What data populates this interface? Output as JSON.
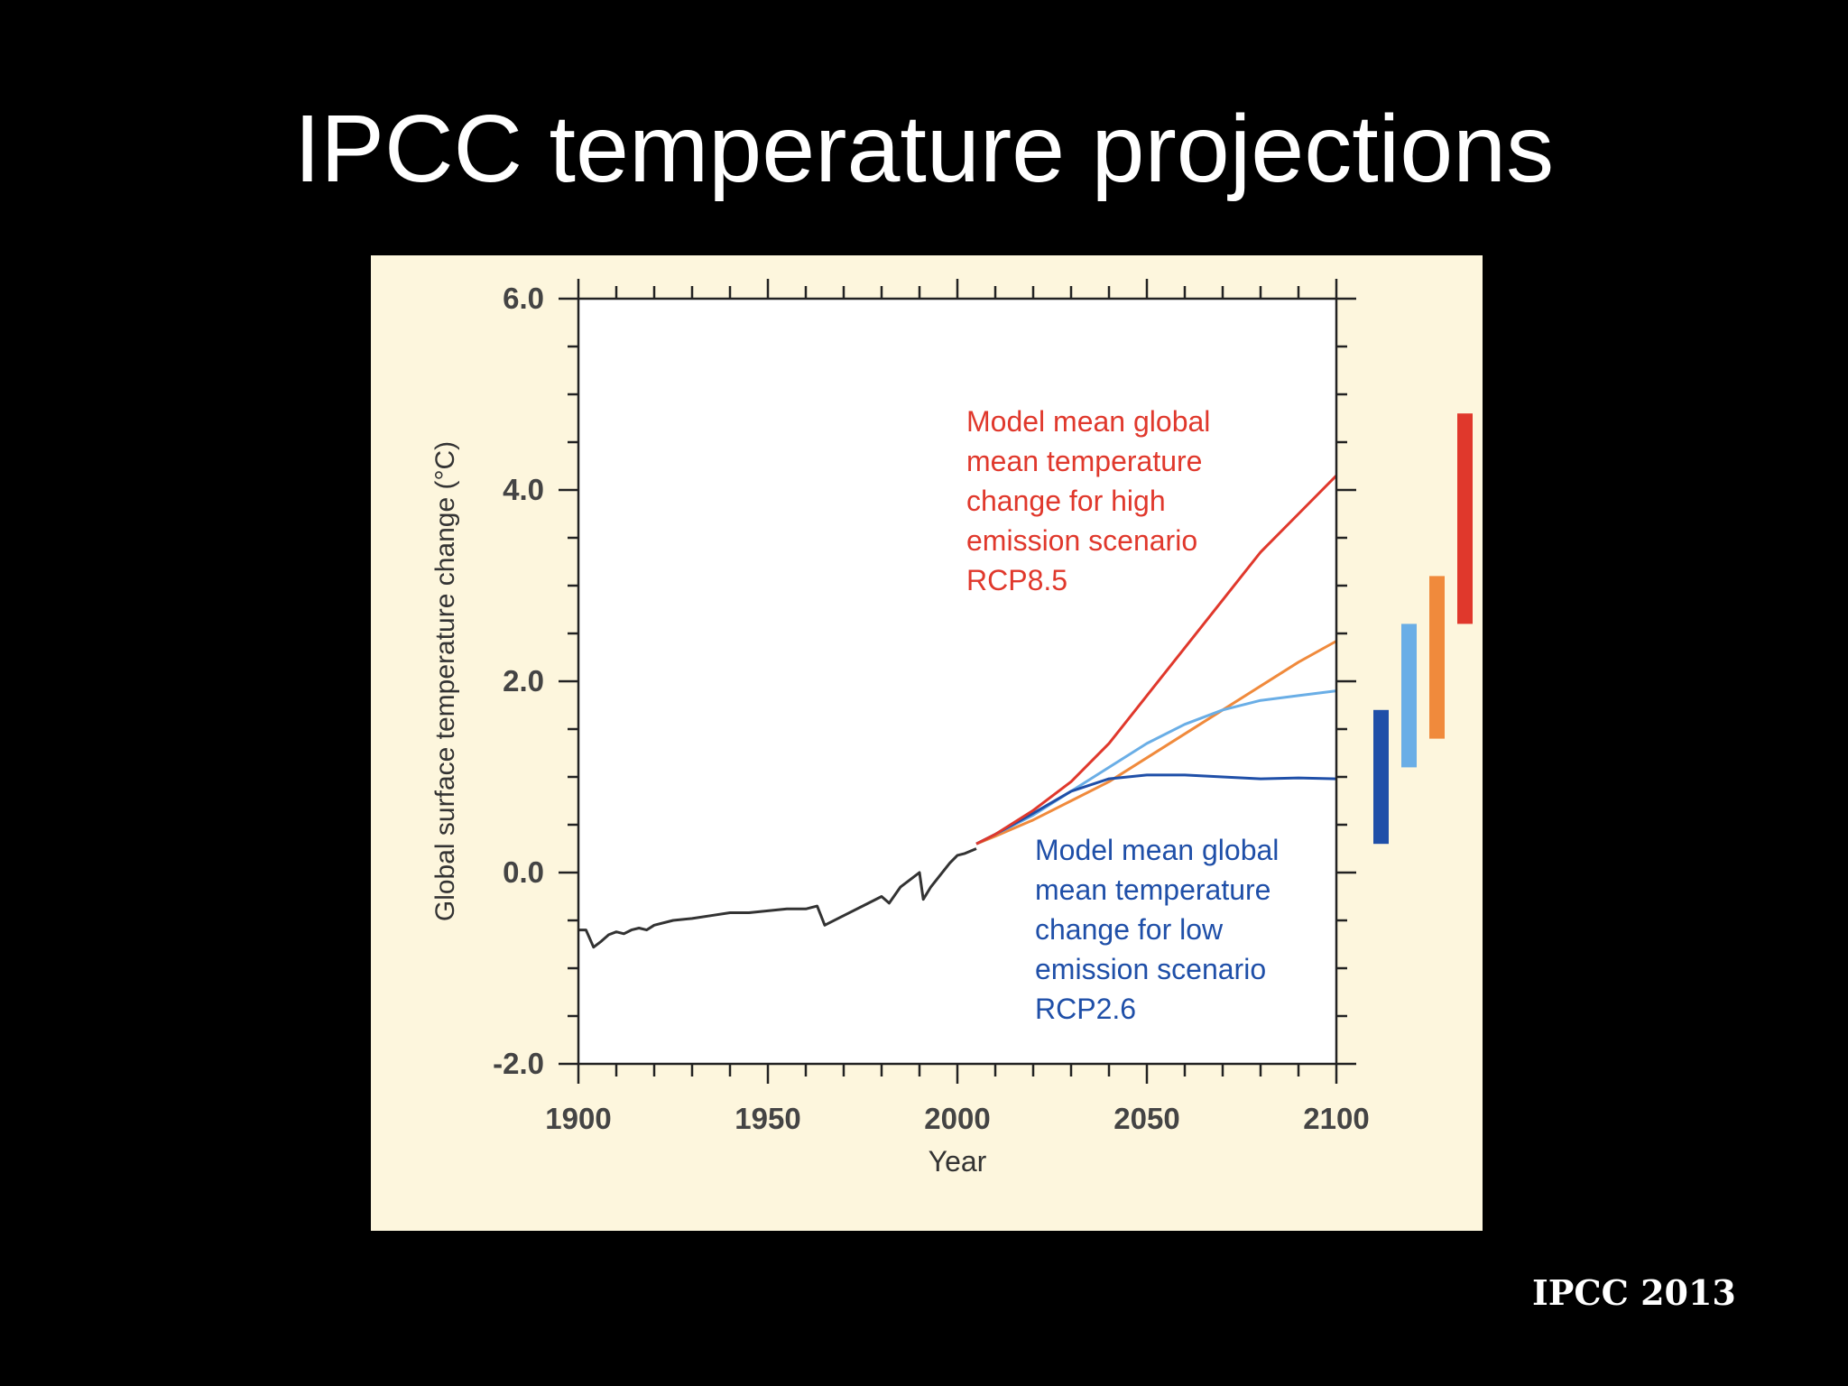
{
  "slide": {
    "title": "IPCC temperature projections",
    "source": "IPCC 2013"
  },
  "colors": {
    "background": "#000000",
    "panel": "#fdf6dd",
    "historical": "#333333",
    "rcp85": "#e0382c",
    "rcp60": "#f08a3c",
    "rcp45": "#6aaee6",
    "rcp26": "#1f4fa8"
  },
  "chart_data": {
    "type": "line",
    "title": "",
    "xlabel": "Year",
    "ylabel": "Global surface temperature change (°C)",
    "xlim": [
      1900,
      2100
    ],
    "ylim": [
      -2.0,
      6.0
    ],
    "x_ticks": [
      1900,
      1950,
      2000,
      2050,
      2100
    ],
    "x_tick_labels": [
      "1900",
      "1950",
      "2000",
      "2050",
      "2100"
    ],
    "y_ticks": [
      -2.0,
      0.0,
      2.0,
      4.0,
      6.0
    ],
    "y_tick_labels": [
      "-2.0",
      "0.0",
      "2.0",
      "4.0",
      "6.0"
    ],
    "grid": false,
    "series": [
      {
        "key": "historical",
        "x": [
          1900,
          1902,
          1904,
          1906,
          1908,
          1910,
          1912,
          1914,
          1916,
          1918,
          1920,
          1925,
          1930,
          1935,
          1940,
          1945,
          1950,
          1955,
          1960,
          1963,
          1965,
          1970,
          1975,
          1980,
          1982,
          1985,
          1990,
          1991,
          1993,
          1995,
          1998,
          2000,
          2002,
          2005
        ],
        "y": [
          -0.6,
          -0.6,
          -0.78,
          -0.72,
          -0.65,
          -0.62,
          -0.64,
          -0.6,
          -0.58,
          -0.6,
          -0.55,
          -0.5,
          -0.48,
          -0.45,
          -0.42,
          -0.42,
          -0.4,
          -0.38,
          -0.38,
          -0.35,
          -0.55,
          -0.45,
          -0.35,
          -0.25,
          -0.32,
          -0.15,
          0.0,
          -0.28,
          -0.15,
          -0.05,
          0.1,
          0.18,
          0.2,
          0.25
        ]
      },
      {
        "key": "rcp85",
        "x": [
          2005,
          2010,
          2020,
          2030,
          2040,
          2050,
          2060,
          2070,
          2080,
          2090,
          2100
        ],
        "y": [
          0.3,
          0.4,
          0.65,
          0.95,
          1.35,
          1.85,
          2.35,
          2.85,
          3.35,
          3.75,
          4.15
        ]
      },
      {
        "key": "rcp60",
        "x": [
          2005,
          2010,
          2020,
          2030,
          2040,
          2050,
          2060,
          2070,
          2080,
          2090,
          2100
        ],
        "y": [
          0.3,
          0.38,
          0.55,
          0.75,
          0.95,
          1.2,
          1.45,
          1.7,
          1.95,
          2.2,
          2.42
        ]
      },
      {
        "key": "rcp45",
        "x": [
          2005,
          2010,
          2020,
          2030,
          2040,
          2050,
          2060,
          2070,
          2080,
          2090,
          2100
        ],
        "y": [
          0.3,
          0.4,
          0.6,
          0.85,
          1.1,
          1.35,
          1.55,
          1.7,
          1.8,
          1.85,
          1.9
        ]
      },
      {
        "key": "rcp26",
        "x": [
          2005,
          2010,
          2020,
          2030,
          2040,
          2050,
          2060,
          2070,
          2080,
          2090,
          2100
        ],
        "y": [
          0.3,
          0.4,
          0.62,
          0.85,
          0.98,
          1.02,
          1.02,
          1.0,
          0.98,
          0.99,
          0.98
        ]
      }
    ],
    "range_bars": [
      {
        "key": "rcp26",
        "low": 0.3,
        "high": 1.7
      },
      {
        "key": "rcp45",
        "low": 1.1,
        "high": 2.6
      },
      {
        "key": "rcp60",
        "low": 1.4,
        "high": 3.1
      },
      {
        "key": "rcp85",
        "low": 2.6,
        "high": 4.8
      }
    ],
    "annotations": {
      "high": [
        "Model mean global",
        "mean temperature",
        "change for high",
        "emission scenario",
        "RCP8.5"
      ],
      "low": [
        "Model mean global",
        "mean temperature",
        "change for low",
        "emission scenario",
        "RCP2.6"
      ]
    }
  }
}
